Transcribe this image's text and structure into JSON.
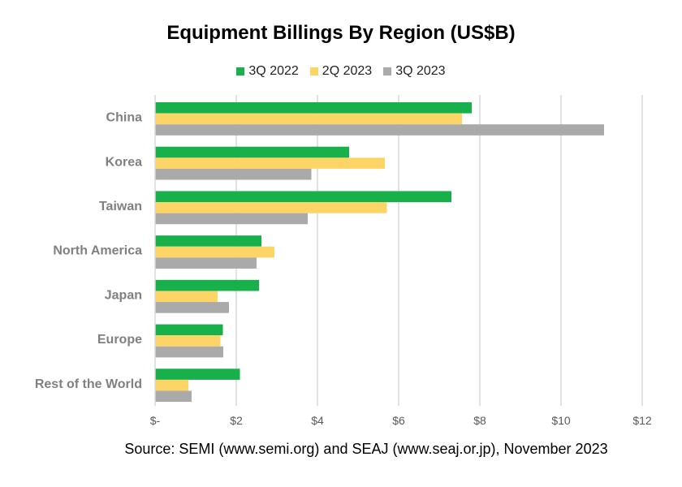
{
  "chart_data": {
    "type": "bar",
    "orientation": "horizontal",
    "title": "Equipment Billings By Region (US$B)",
    "categories": [
      "China",
      "Korea",
      "Taiwan",
      "North America",
      "Japan",
      "Europe",
      "Rest of the World"
    ],
    "series": [
      {
        "name": "3Q 2022",
        "color": "#18b04a",
        "values": [
          7.8,
          4.78,
          7.3,
          2.62,
          2.56,
          1.67,
          2.09
        ]
      },
      {
        "name": "2Q 2023",
        "color": "#fdd466",
        "values": [
          7.56,
          5.66,
          5.71,
          2.94,
          1.54,
          1.61,
          0.82
        ]
      },
      {
        "name": "3Q 2023",
        "color": "#aaaaaa",
        "values": [
          11.06,
          3.85,
          3.76,
          2.5,
          1.82,
          1.68,
          0.9
        ]
      }
    ],
    "xlim": [
      0,
      12
    ],
    "xticks": [
      0,
      2,
      4,
      6,
      8,
      10,
      12
    ],
    "xtick_labels": [
      "$-",
      "$2",
      "$4",
      "$6",
      "$8",
      "$10",
      "$12"
    ],
    "grid": true,
    "legend_position": "top",
    "source": "Source: SEMI (www.semi.org) and SEAJ (www.seaj.or.jp), November 2023"
  }
}
